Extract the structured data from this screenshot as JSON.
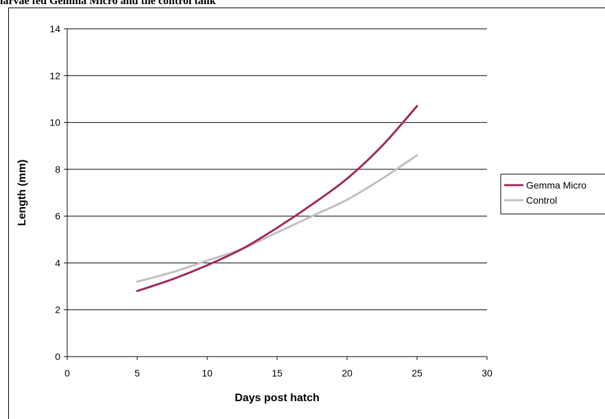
{
  "title_fragment": "larvae fed Gemma Micro and the control tank",
  "chart_data": {
    "type": "line",
    "title": "larvae fed Gemma Micro and the control tank",
    "xlabel": "Days post hatch",
    "ylabel": "Length (mm)",
    "xlim": [
      0,
      30
    ],
    "ylim": [
      0,
      14
    ],
    "xticks": [
      0,
      5,
      10,
      15,
      20,
      25,
      30
    ],
    "yticks": [
      0,
      2,
      4,
      6,
      8,
      10,
      12,
      14
    ],
    "grid": "horizontal",
    "legend_position": "right",
    "series": [
      {
        "name": "Gemma Micro",
        "color": "#a0285f",
        "x": [
          5,
          7.5,
          10,
          12.5,
          15,
          17.5,
          20,
          22.5,
          25
        ],
        "y": [
          2.8,
          3.3,
          3.9,
          4.6,
          5.5,
          6.5,
          7.6,
          9.0,
          10.7
        ]
      },
      {
        "name": "Control",
        "color": "#c0c0c0",
        "x": [
          5,
          7.5,
          10,
          12.5,
          15,
          17.5,
          20,
          22.5,
          25
        ],
        "y": [
          3.2,
          3.6,
          4.1,
          4.6,
          5.3,
          6.0,
          6.7,
          7.6,
          8.6
        ]
      }
    ]
  }
}
